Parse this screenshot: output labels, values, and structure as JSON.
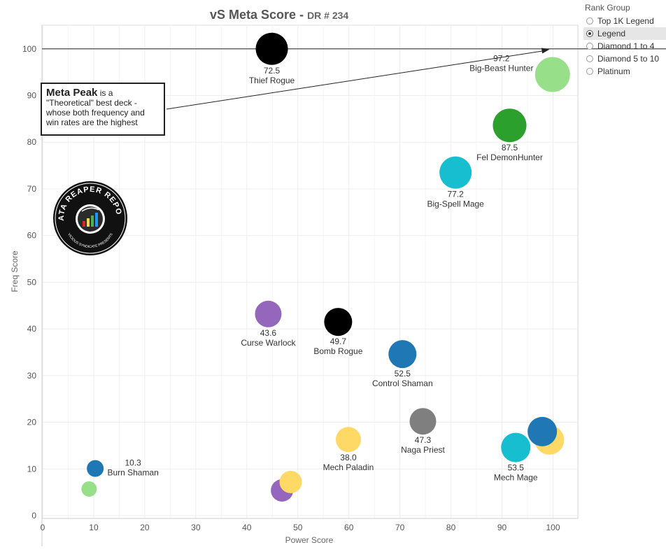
{
  "chart_data": {
    "type": "scatter",
    "title": "vS Meta Score",
    "subtitle": "DR # 234",
    "title_separator": "-",
    "xlabel": "Power Score",
    "ylabel": "Freq Score",
    "xlim": [
      0,
      105
    ],
    "ylim": [
      0,
      105
    ],
    "xticks": [
      0,
      10,
      20,
      30,
      40,
      50,
      60,
      70,
      80,
      90,
      100
    ],
    "yticks": [
      0,
      10,
      20,
      30,
      40,
      50,
      60,
      70,
      80,
      90,
      100
    ],
    "grid": true,
    "reference_line_y": 100,
    "points": [
      {
        "x": 44.9,
        "y": 100,
        "r": 23,
        "color": "#000000",
        "score": "72.5",
        "name": "Thief Rogue",
        "label_pos": "below"
      },
      {
        "x": 99.9,
        "y": 94.5,
        "r": 25,
        "color": "#98df8a",
        "score": "97.2",
        "name": "Big-Beast Hunter",
        "label_pos": "left"
      },
      {
        "x": 91.5,
        "y": 83.6,
        "r": 24,
        "color": "#2ca02c",
        "score": "87.5",
        "name": "Fel DemonHunter",
        "label_pos": "below"
      },
      {
        "x": 80.9,
        "y": 73.5,
        "r": 23,
        "color": "#17becf",
        "score": "77.2",
        "name": "Big-Spell Mage",
        "label_pos": "below"
      },
      {
        "x": 44.2,
        "y": 43.2,
        "r": 19,
        "color": "#9467bd",
        "score": "43.6",
        "name": "Curse Warlock",
        "label_pos": "below"
      },
      {
        "x": 57.9,
        "y": 41.5,
        "r": 20,
        "color": "#000000",
        "score": "49.7",
        "name": "Bomb Rogue",
        "label_pos": "below"
      },
      {
        "x": 70.5,
        "y": 34.6,
        "r": 20,
        "color": "#1f77b4",
        "score": "52.5",
        "name": "Control Shaman",
        "label_pos": "below"
      },
      {
        "x": 74.5,
        "y": 20.2,
        "r": 19,
        "color": "#7f7f7f",
        "score": "47.3",
        "name": "Naga Priest",
        "label_pos": "below"
      },
      {
        "x": 59.9,
        "y": 16.3,
        "r": 18,
        "color": "#ffd966",
        "score": "38.0",
        "name": "Mech Paladin",
        "label_pos": "below"
      },
      {
        "x": 99.3,
        "y": 16.2,
        "r": 21,
        "color": "#ffd966",
        "score": "",
        "name": "",
        "label_pos": "none"
      },
      {
        "x": 97.9,
        "y": 18.0,
        "r": 21,
        "color": "#1f77b4",
        "score": "",
        "name": "",
        "label_pos": "none"
      },
      {
        "x": 92.7,
        "y": 14.6,
        "r": 21,
        "color": "#17becf",
        "score": "53.5",
        "name": "Mech Mage",
        "label_pos": "below"
      },
      {
        "x": 10.3,
        "y": 10.1,
        "r": 12,
        "color": "#1f77b4",
        "score": "10.3",
        "name": "Burn Shaman",
        "label_pos": "right"
      },
      {
        "x": 9.1,
        "y": 5.7,
        "r": 11,
        "color": "#98df8a",
        "score": "",
        "name": "",
        "label_pos": "none"
      },
      {
        "x": 46.9,
        "y": 5.4,
        "r": 16,
        "color": "#9467bd",
        "score": "",
        "name": "",
        "label_pos": "none"
      },
      {
        "x": 48.6,
        "y": 7.2,
        "r": 16,
        "color": "#ffd966",
        "score": "",
        "name": "",
        "label_pos": "none"
      }
    ]
  },
  "legend": {
    "title": "Rank Group",
    "items": [
      {
        "label": "Top 1K Legend",
        "selected": false
      },
      {
        "label": "Legend",
        "selected": true
      },
      {
        "label": "Diamond 1 to 4",
        "selected": false
      },
      {
        "label": "Diamond 5 to 10",
        "selected": false
      },
      {
        "label": "Platinum",
        "selected": false
      }
    ]
  },
  "annotation": {
    "bold": "Meta Peak",
    "text": " is a \"Theoretical\" best deck - whose both frequency and win rates are the highest"
  },
  "logo": {
    "top_text": "DATA REAPER REPORT",
    "bottom_text": "VICIOUS SYNDICATE PRESENTS",
    "icon": "reaper-bar-chart-logo"
  }
}
